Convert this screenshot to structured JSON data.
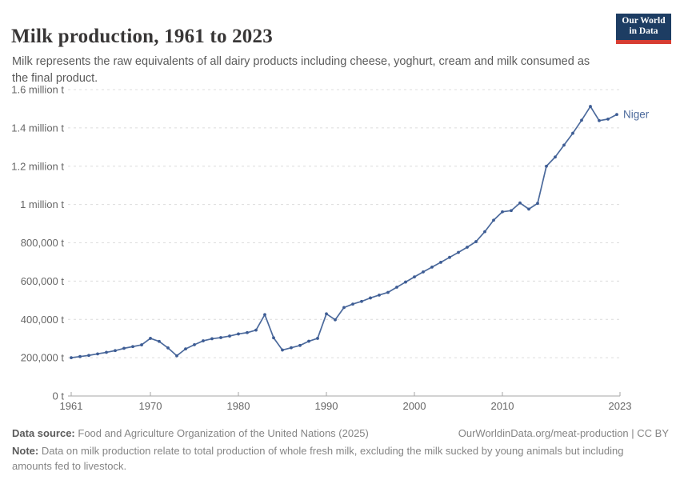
{
  "header": {
    "title": "Milk production, 1961 to 2023",
    "subtitle": "Milk represents the raw equivalents of all dairy products including cheese, yoghurt, cream and milk consumed as the final product.",
    "logo": {
      "line1": "Our World",
      "line2": "in Data",
      "navy": "#1d3d63",
      "red": "#d73d32"
    }
  },
  "chart_data": {
    "type": "line",
    "title": "Milk production, 1961 to 2023",
    "xlabel": "",
    "ylabel": "",
    "xlim": [
      1961,
      2023
    ],
    "ylim": [
      0,
      1600000
    ],
    "grid": "horizontal-dashed",
    "legend_position": "end-of-line-label",
    "x": [
      1961,
      1962,
      1963,
      1964,
      1965,
      1966,
      1967,
      1968,
      1969,
      1970,
      1971,
      1972,
      1973,
      1974,
      1975,
      1976,
      1977,
      1978,
      1979,
      1980,
      1981,
      1982,
      1983,
      1984,
      1985,
      1986,
      1987,
      1988,
      1989,
      1990,
      1991,
      1992,
      1993,
      1994,
      1995,
      1996,
      1997,
      1998,
      1999,
      2000,
      2001,
      2002,
      2003,
      2004,
      2005,
      2006,
      2007,
      2008,
      2009,
      2010,
      2011,
      2012,
      2013,
      2014,
      2015,
      2016,
      2017,
      2018,
      2019,
      2020,
      2021,
      2022,
      2023
    ],
    "series": [
      {
        "name": "Niger",
        "color": "#4c6a9c",
        "marker_color": "#3d5c94",
        "values": [
          200000,
          206000,
          212000,
          220000,
          228000,
          237000,
          249000,
          258000,
          267000,
          301000,
          285000,
          251000,
          210000,
          246000,
          268000,
          288000,
          299000,
          305000,
          313000,
          324000,
          331000,
          344000,
          425000,
          304000,
          240000,
          252000,
          264000,
          286000,
          301000,
          429000,
          398000,
          462000,
          480000,
          494000,
          512000,
          527000,
          541000,
          568000,
          595000,
          622000,
          648000,
          673000,
          698000,
          724000,
          750000,
          777000,
          806000,
          858000,
          918000,
          962000,
          968000,
          1008000,
          976000,
          1006000,
          1200000,
          1248000,
          1310000,
          1372000,
          1440000,
          1512000,
          1438000,
          1446000,
          1470000
        ]
      }
    ],
    "y_ticks": [
      {
        "value": 0,
        "label": "0 t"
      },
      {
        "value": 200000,
        "label": "200,000 t"
      },
      {
        "value": 400000,
        "label": "400,000 t"
      },
      {
        "value": 600000,
        "label": "600,000 t"
      },
      {
        "value": 800000,
        "label": "800,000 t"
      },
      {
        "value": 1000000,
        "label": "1 million t"
      },
      {
        "value": 1200000,
        "label": "1.2 million t"
      },
      {
        "value": 1400000,
        "label": "1.4 million t"
      },
      {
        "value": 1600000,
        "label": "1.6 million t"
      }
    ],
    "x_ticks": [
      {
        "year": 1961,
        "label": "1961"
      },
      {
        "year": 1970,
        "label": "1970"
      },
      {
        "year": 1980,
        "label": "1980"
      },
      {
        "year": 1990,
        "label": "1990"
      },
      {
        "year": 2000,
        "label": "2000"
      },
      {
        "year": 2010,
        "label": "2010"
      },
      {
        "year": 2023,
        "label": "2023"
      }
    ]
  },
  "footer": {
    "datasource_label": "Data source:",
    "datasource_text": "Food and Agriculture Organization of the United Nations (2025)",
    "credit": "OurWorldinData.org/meat-production | CC BY",
    "note_label": "Note:",
    "note_text": "Data on milk production relate to total production of whole fresh milk, excluding the milk sucked by young animals but including amounts fed to livestock."
  }
}
